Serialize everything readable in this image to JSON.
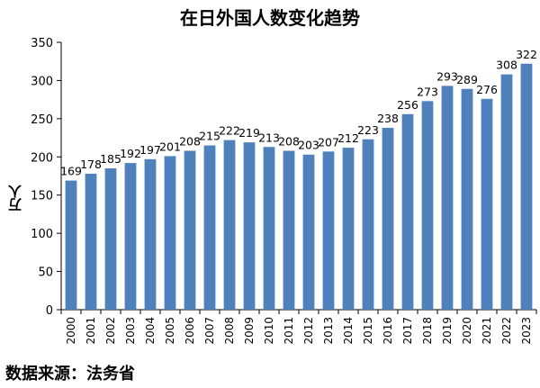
{
  "chart_data": {
    "type": "bar",
    "title": "在日外国人数变化趋势",
    "xlabel": "",
    "ylabel": "万人",
    "ylim": [
      0,
      350
    ],
    "yticks": [
      0,
      50,
      100,
      150,
      200,
      250,
      300,
      350
    ],
    "grid": false,
    "categories": [
      "2000",
      "2001",
      "2002",
      "2003",
      "2004",
      "2005",
      "2006",
      "2007",
      "2008",
      "2009",
      "2010",
      "2011",
      "2012",
      "2013",
      "2014",
      "2015",
      "2016",
      "2017",
      "2018",
      "2019",
      "2020",
      "2021",
      "2022",
      "2023"
    ],
    "values": [
      169,
      178,
      185,
      192,
      197,
      201,
      208,
      215,
      222,
      219,
      213,
      208,
      203,
      207,
      212,
      223,
      238,
      256,
      273,
      293,
      289,
      276,
      308,
      322
    ],
    "bar_color": "#4F81BD"
  },
  "source_text": "数据来源：法务省"
}
